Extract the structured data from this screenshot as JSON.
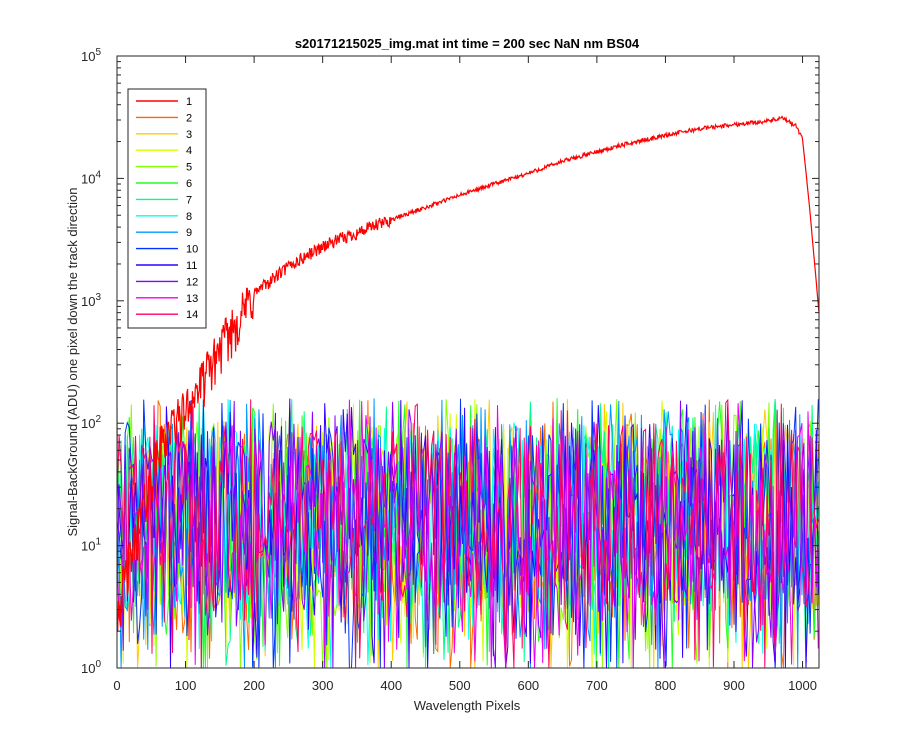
{
  "chart_data": {
    "type": "line",
    "title": "s20171215025_img.mat int time = 200 sec  NaN nm BS04",
    "xlabel": "Wavelength Pixels",
    "ylabel": "Signal-BackGround (ADU) one pixel down the track direction",
    "xlim": [
      0,
      1024
    ],
    "ylim": [
      1,
      100000
    ],
    "yscale": "log",
    "x_ticks": [
      "0",
      "100",
      "200",
      "300",
      "400",
      "500",
      "600",
      "700",
      "800",
      "900",
      "1000"
    ],
    "y_tick_base": "10",
    "y_tick_exponents": [
      "0",
      "1",
      "2",
      "3",
      "4",
      "5"
    ],
    "legend_position": "top-left",
    "series": [
      {
        "name": "1",
        "color": "#ff0000",
        "kind": "signal",
        "x": [
          0,
          60,
          70,
          80,
          100,
          120,
          150,
          200,
          250,
          300,
          350,
          400,
          450,
          500,
          550,
          600,
          650,
          700,
          750,
          800,
          850,
          900,
          950,
          970,
          990,
          1000,
          1010,
          1024
        ],
        "y": [
          3,
          60,
          80,
          95,
          130,
          200,
          420,
          1150,
          1900,
          2800,
          3600,
          4600,
          5800,
          7300,
          9000,
          11000,
          13800,
          16500,
          19500,
          22500,
          25500,
          27500,
          29500,
          31000,
          27000,
          21000,
          6000,
          800
        ]
      },
      {
        "name": "2",
        "color": "#ff6a00",
        "kind": "noise"
      },
      {
        "name": "3",
        "color": "#ffcc00",
        "kind": "noise"
      },
      {
        "name": "4",
        "color": "#d4ff00",
        "kind": "noise"
      },
      {
        "name": "5",
        "color": "#88ff00",
        "kind": "noise"
      },
      {
        "name": "6",
        "color": "#22ff22",
        "kind": "noise"
      },
      {
        "name": "7",
        "color": "#00ff88",
        "kind": "noise"
      },
      {
        "name": "8",
        "color": "#00ffee",
        "kind": "noise"
      },
      {
        "name": "9",
        "color": "#0099ff",
        "kind": "noise"
      },
      {
        "name": "10",
        "color": "#0033ff",
        "kind": "noise"
      },
      {
        "name": "11",
        "color": "#3300ff",
        "kind": "noise"
      },
      {
        "name": "12",
        "color": "#8800ff",
        "kind": "noise"
      },
      {
        "name": "13",
        "color": "#ee00ee",
        "kind": "noise"
      },
      {
        "name": "14",
        "color": "#ff0066",
        "kind": "noise"
      }
    ],
    "noise_band": {
      "typical_range": [
        3,
        100
      ],
      "spike_max": 160
    }
  }
}
